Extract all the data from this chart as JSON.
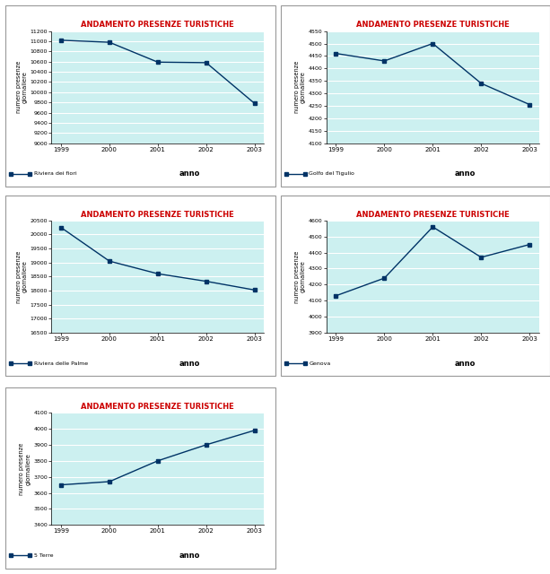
{
  "title": "ANDAMENTO PRESENZE TURISTICHE",
  "title_color": "#cc0000",
  "xlabel": "anno",
  "ylabel": "numero presenze\ngiornaliere",
  "bg_color": "#ccf0f0",
  "line_color": "#003366",
  "years": [
    1999,
    2000,
    2001,
    2002,
    2003
  ],
  "charts": [
    {
      "label": "Riviera dei fiori",
      "values": [
        11020,
        10980,
        10590,
        10580,
        9780
      ],
      "ylim": [
        9000,
        11200
      ],
      "yticks": [
        9000,
        9200,
        9400,
        9600,
        9800,
        10000,
        10200,
        10400,
        10600,
        10800,
        11000,
        11200
      ]
    },
    {
      "label": "Golfo del Tigulio",
      "values": [
        4460,
        4430,
        4500,
        4340,
        4255
      ],
      "ylim": [
        4100,
        4550
      ],
      "yticks": [
        4100,
        4150,
        4200,
        4250,
        4300,
        4350,
        4400,
        4450,
        4500,
        4550
      ]
    },
    {
      "label": "Riviera delle Palme",
      "values": [
        20250,
        19050,
        18600,
        18330,
        18020
      ],
      "ylim": [
        16500,
        20500
      ],
      "yticks": [
        16500,
        17000,
        17500,
        18000,
        18500,
        19000,
        19500,
        20000,
        20500
      ]
    },
    {
      "label": "Genova",
      "values": [
        4130,
        4240,
        4560,
        4370,
        4450
      ],
      "ylim": [
        3900,
        4600
      ],
      "yticks": [
        3900,
        4000,
        4100,
        4200,
        4300,
        4400,
        4500,
        4600
      ]
    },
    {
      "label": "5 Terre",
      "values": [
        3650,
        3670,
        3800,
        3900,
        3990
      ],
      "ylim": [
        3400,
        4100
      ],
      "yticks": [
        3400,
        3500,
        3600,
        3700,
        3800,
        3900,
        4000,
        4100
      ]
    }
  ]
}
